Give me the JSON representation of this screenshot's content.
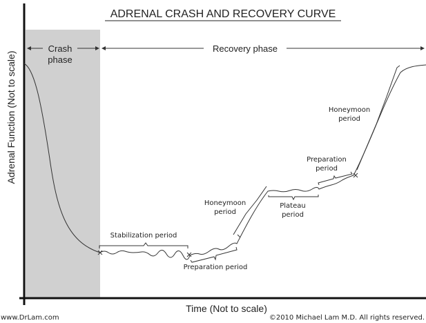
{
  "title": "ADRENAL CRASH AND RECOVERY CURVE",
  "y_axis_label": "Adrenal Function (Not to scale)",
  "x_axis_label": "Time (Not to scale)",
  "phases": {
    "crash": [
      "Crash",
      "phase"
    ],
    "recovery": "Recovery phase"
  },
  "periods": {
    "stabilization": "Stabilization period",
    "preparation1": "Preparation period",
    "honeymoon1": [
      "Honeymoon",
      "period"
    ],
    "plateau": [
      "Plateau",
      "period"
    ],
    "preparation2": [
      "Preparation",
      "period"
    ],
    "honeymoon2": [
      "Honeymoon",
      "period"
    ]
  },
  "footer": {
    "website": "www.DrLam.com",
    "copyright": "©2010 Michael Lam M.D. All rights reserved."
  },
  "colors": {
    "crash_shade": "#d0d0d0",
    "line": "#333333"
  }
}
